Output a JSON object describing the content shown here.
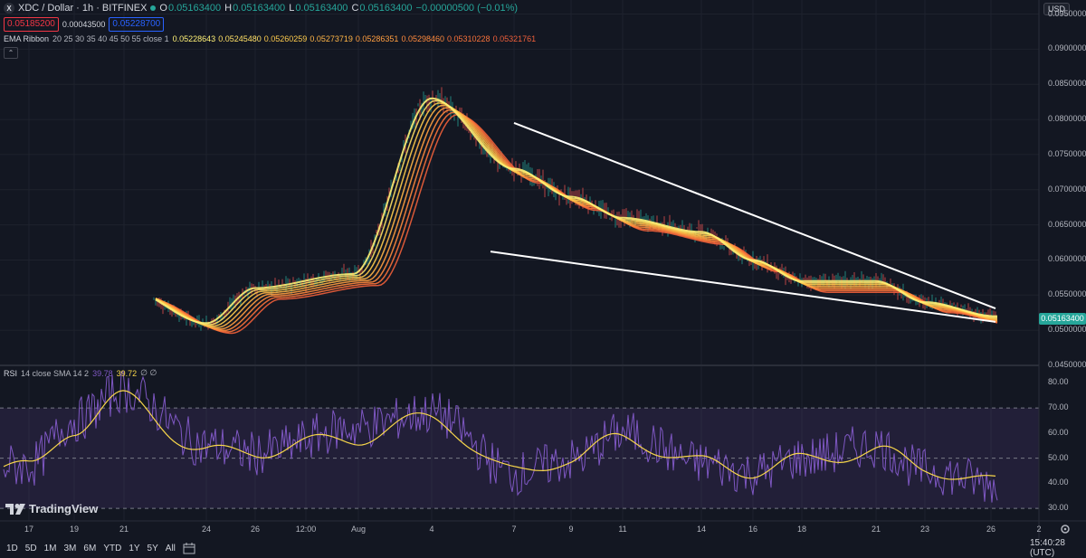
{
  "header": {
    "symbol_badge": "X",
    "title": "XDC / Dollar · 1h · BITFINEX",
    "ohlc": {
      "o_label": "O",
      "o": "0.05163400",
      "h_label": "H",
      "h": "0.05163400",
      "l_label": "L",
      "l": "0.05163400",
      "c_label": "C",
      "c": "0.05163400",
      "change": "−0.00000500 (−0.01%)"
    },
    "bid": "0.05185200",
    "spread": "0.00043500",
    "ask": "0.05228700"
  },
  "ema_ribbon": {
    "label": "EMA Ribbon",
    "params": "20 25 30 35 40 45 50 55 close 1",
    "values": [
      "0.05228643",
      "0.05245480",
      "0.05260259",
      "0.05273719",
      "0.05286351",
      "0.05298460",
      "0.05310228",
      "0.05321761"
    ],
    "colors": [
      "#fff176",
      "#ffe066",
      "#ffcc4d",
      "#ffb547",
      "#ff9e40",
      "#ff8a3d",
      "#f9723a",
      "#ef5f3a"
    ]
  },
  "rsi": {
    "label": "RSI",
    "params": "14 close SMA 14 2",
    "value": "39.78",
    "sma_value": "39.72",
    "extra": "∅ ∅",
    "line_color": "#7e57c2",
    "sma_color": "#f7d64a"
  },
  "price_axis": {
    "currency_button": "USD",
    "labels": [
      "0.09500000",
      "0.09000000",
      "0.08500000",
      "0.08000000",
      "0.07500000",
      "0.07000000",
      "0.06500000",
      "0.06000000",
      "0.05500000",
      "0.05000000",
      "0.04500000"
    ],
    "current_price": "0.05163400",
    "current_price_color": "#26a69a"
  },
  "rsi_axis": {
    "labels": [
      "80.00",
      "70.00",
      "60.00",
      "50.00",
      "40.00",
      "30.00"
    ]
  },
  "time_axis": {
    "labels": [
      "17",
      "19",
      "21",
      "24",
      "26",
      "12:00",
      "Aug",
      "4",
      "7",
      "9",
      "11",
      "14",
      "16",
      "18",
      "21",
      "23",
      "26",
      "2"
    ]
  },
  "logo": {
    "text": "TradingView"
  },
  "bottom_bar": {
    "ranges": [
      "1D",
      "5D",
      "1M",
      "3M",
      "6M",
      "YTD",
      "1Y",
      "5Y",
      "All"
    ],
    "clock": "15:40:28 (UTC)"
  },
  "chart_data": [
    {
      "type": "line",
      "description": "XDC/USD 1h price with EMA ribbon (price pane)",
      "x": [
        "17",
        "19",
        "21",
        "24",
        "26",
        "Aug 2",
        "Aug 4",
        "Aug 7",
        "Aug 9",
        "Aug 11",
        "Aug 14",
        "Aug 16",
        "Aug 18",
        "Aug 21",
        "Aug 23",
        "Aug 26"
      ],
      "series": [
        {
          "name": "EMA Ribbon (approx. price path)",
          "values": [
            0.046,
            0.05,
            0.056,
            0.051,
            0.056,
            0.058,
            0.083,
            0.073,
            0.069,
            0.066,
            0.064,
            0.06,
            0.057,
            0.057,
            0.054,
            0.052
          ]
        }
      ],
      "ylim": [
        0.045,
        0.097
      ],
      "annotations": [
        {
          "type": "trendline",
          "from": [
            "Aug 7",
            0.0795
          ],
          "to": [
            "Aug 26",
            0.0531
          ]
        },
        {
          "type": "trendline",
          "from": [
            "Aug 6",
            0.0612
          ],
          "to": [
            "Aug 26",
            0.0512
          ]
        }
      ]
    },
    {
      "type": "line",
      "description": "RSI 14 with SMA 14 (oscillator pane)",
      "x": [
        "17",
        "19",
        "21",
        "24",
        "26",
        "Aug 2",
        "Aug 4",
        "Aug 7",
        "Aug 9",
        "Aug 11",
        "Aug 14",
        "Aug 16",
        "Aug 18",
        "Aug 21",
        "Aug 23",
        "Aug 26"
      ],
      "series": [
        {
          "name": "RSI",
          "values": [
            47,
            65,
            77,
            55,
            52,
            62,
            68,
            44,
            49,
            60,
            48,
            44,
            50,
            55,
            45,
            40
          ]
        },
        {
          "name": "SMA",
          "values": [
            46,
            62,
            74,
            52,
            53,
            58,
            66,
            44,
            50,
            58,
            48,
            45,
            49,
            53,
            46,
            40
          ]
        }
      ],
      "ylim": [
        25,
        87
      ],
      "bands": [
        30,
        50,
        70
      ]
    }
  ]
}
